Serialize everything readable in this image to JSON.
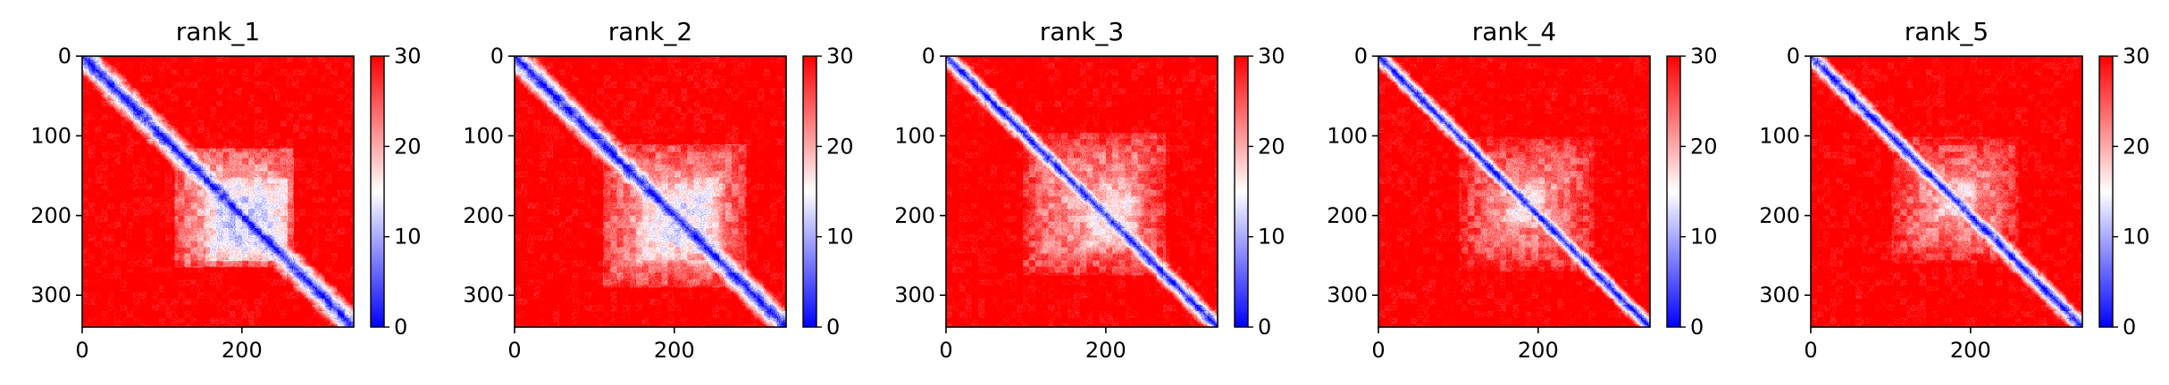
{
  "figure": {
    "background": "#ffffff"
  },
  "chart_data": [
    {
      "type": "heatmap",
      "title": "rank_1",
      "size": 340,
      "xlim": [
        0,
        340
      ],
      "ylim": [
        340,
        0
      ],
      "xticks": [
        0,
        200
      ],
      "yticks": [
        0,
        100,
        200,
        300
      ],
      "colorbar": {
        "ticks": [
          0,
          10,
          20,
          30
        ],
        "range": [
          0,
          30
        ],
        "cmap": "bwr",
        "low": "#0000ff",
        "mid": "#ffffff",
        "high": "#ff0000"
      },
      "diagonal_width": 14,
      "domains": [
        {
          "center": 205,
          "halfwidth": 52,
          "value": 11
        },
        {
          "center": 190,
          "halfwidth": 75,
          "value": 18
        }
      ]
    },
    {
      "type": "heatmap",
      "title": "rank_2",
      "size": 340,
      "xlim": [
        0,
        340
      ],
      "ylim": [
        340,
        0
      ],
      "xticks": [
        0,
        200
      ],
      "yticks": [
        0,
        100,
        200,
        300
      ],
      "colorbar": {
        "ticks": [
          0,
          10,
          20,
          30
        ],
        "range": [
          0,
          30
        ],
        "cmap": "bwr",
        "low": "#0000ff",
        "mid": "#ffffff",
        "high": "#ff0000"
      },
      "diagonal_width": 14,
      "domains": [
        {
          "center": 205,
          "halfwidth": 55,
          "value": 13
        },
        {
          "center": 200,
          "halfwidth": 90,
          "value": 19
        }
      ]
    },
    {
      "type": "heatmap",
      "title": "rank_3",
      "size": 340,
      "xlim": [
        0,
        340
      ],
      "ylim": [
        340,
        0
      ],
      "xticks": [
        0,
        200
      ],
      "yticks": [
        0,
        100,
        200,
        300
      ],
      "colorbar": {
        "ticks": [
          0,
          10,
          20,
          30
        ],
        "range": [
          0,
          30
        ],
        "cmap": "bwr",
        "low": "#0000ff",
        "mid": "#ffffff",
        "high": "#ff0000"
      },
      "diagonal_width": 10,
      "domains": [
        {
          "center": 205,
          "halfwidth": 40,
          "value": 15
        },
        {
          "center": 185,
          "halfwidth": 90,
          "value": 20
        }
      ]
    },
    {
      "type": "heatmap",
      "title": "rank_4",
      "size": 340,
      "xlim": [
        0,
        340
      ],
      "ylim": [
        340,
        0
      ],
      "xticks": [
        0,
        200
      ],
      "yticks": [
        0,
        100,
        200,
        300
      ],
      "colorbar": {
        "ticks": [
          0,
          10,
          20,
          30
        ],
        "range": [
          0,
          30
        ],
        "cmap": "bwr",
        "low": "#0000ff",
        "mid": "#ffffff",
        "high": "#ff0000"
      },
      "diagonal_width": 9,
      "domains": [
        {
          "center": 185,
          "halfwidth": 35,
          "value": 16
        },
        {
          "center": 185,
          "halfwidth": 85,
          "value": 21
        }
      ]
    },
    {
      "type": "heatmap",
      "title": "rank_5",
      "size": 340,
      "xlim": [
        0,
        340
      ],
      "ylim": [
        340,
        0
      ],
      "xticks": [
        0,
        200
      ],
      "yticks": [
        0,
        100,
        200,
        300
      ],
      "colorbar": {
        "ticks": [
          0,
          10,
          20,
          30
        ],
        "range": [
          0,
          30
        ],
        "cmap": "bwr",
        "low": "#0000ff",
        "mid": "#ffffff",
        "high": "#ff0000"
      },
      "diagonal_width": 10,
      "domains": [
        {
          "center": 180,
          "halfwidth": 32,
          "value": 16
        },
        {
          "center": 180,
          "halfwidth": 80,
          "value": 21
        }
      ]
    }
  ]
}
